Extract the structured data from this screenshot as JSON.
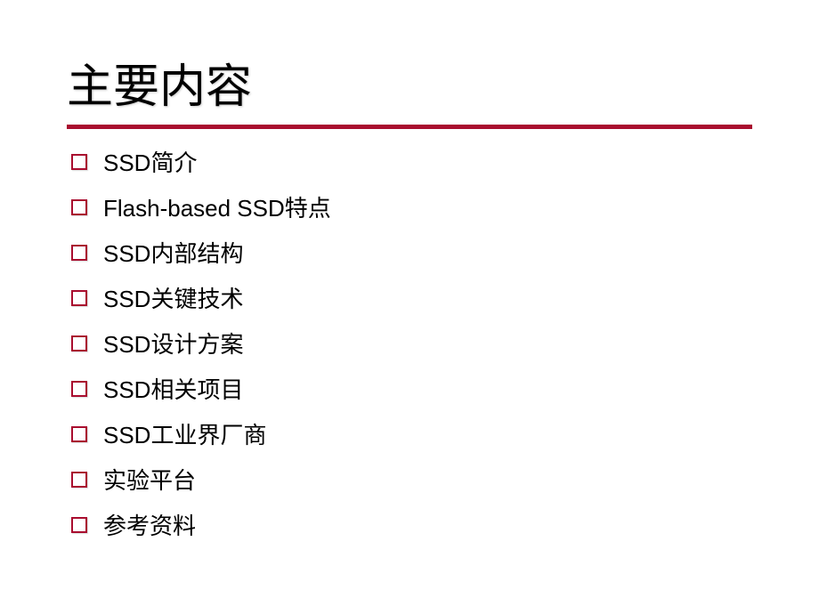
{
  "title": "主要内容",
  "divider_color": "#a90d2f",
  "bullet_border_color": "#a90d2f",
  "title_color": "#000000",
  "text_color": "#000000",
  "background_color": "#ffffff",
  "title_fontsize": 52,
  "item_fontsize": 26,
  "items": [
    {
      "label": "SSD简介"
    },
    {
      "label": "Flash-based SSD特点"
    },
    {
      "label": "SSD内部结构"
    },
    {
      "label": "SSD关键技术"
    },
    {
      "label": "SSD设计方案"
    },
    {
      "label": "SSD相关项目"
    },
    {
      "label": "SSD工业界厂商"
    },
    {
      "label": "实验平台"
    },
    {
      "label": "参考资料"
    }
  ]
}
